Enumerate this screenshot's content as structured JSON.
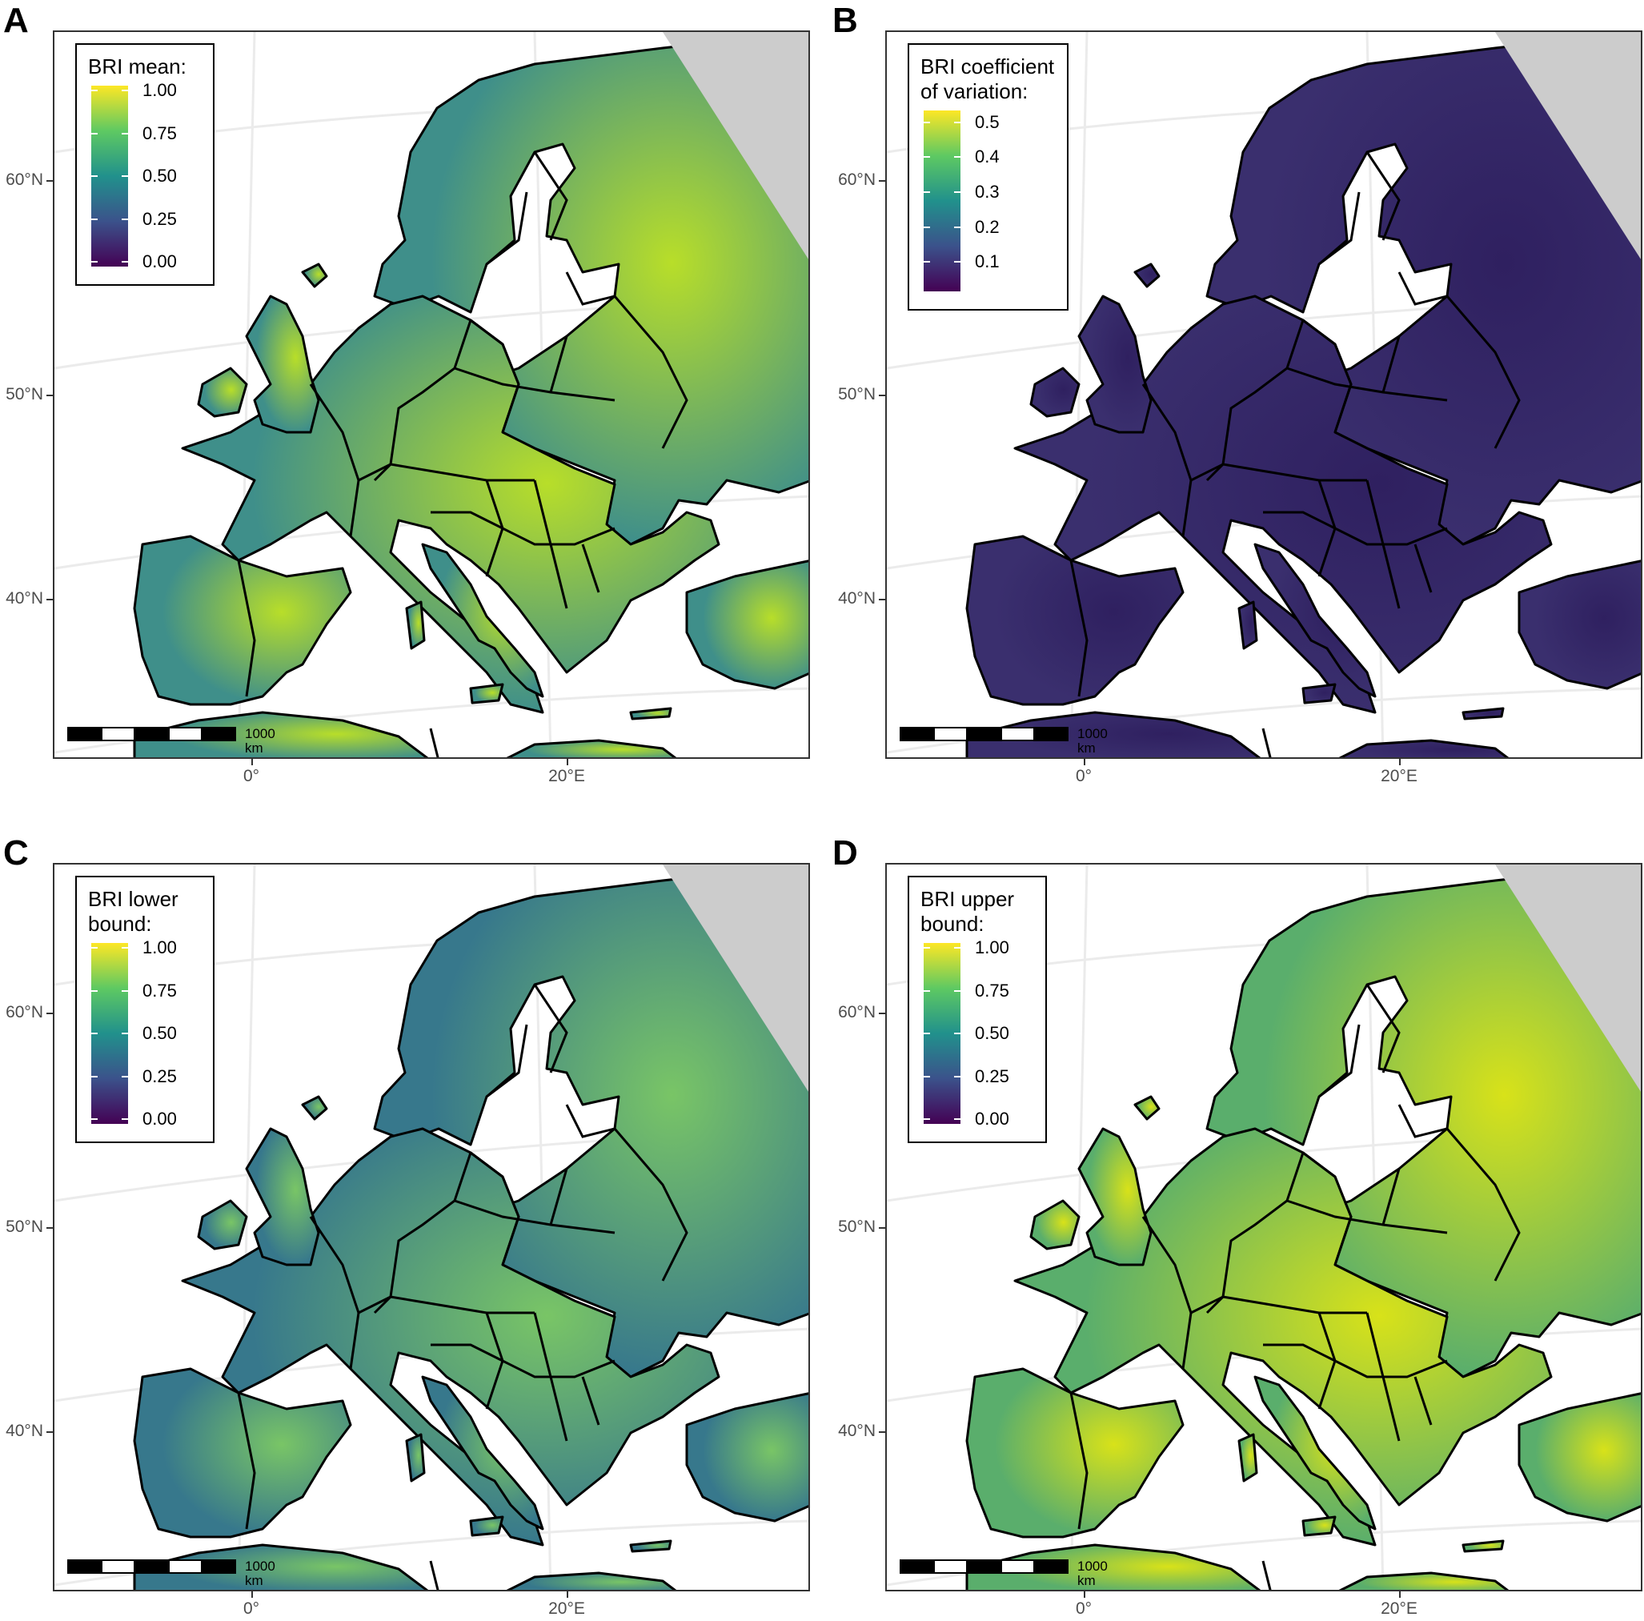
{
  "panels": [
    {
      "id": "A",
      "legend_title": "BRI mean:",
      "scale": "mean",
      "tick_labels": [
        "1.00",
        "0.75",
        "0.50",
        "0.25",
        "0.00"
      ],
      "lat_labels": [
        "60°N",
        "50°N",
        "40°N"
      ],
      "lon_labels": [
        "0°",
        "20°E"
      ],
      "scalebar_label": "1000 km"
    },
    {
      "id": "B",
      "legend_title": "BRI coefficient\nof variation:",
      "scale": "cv",
      "tick_labels": [
        "0.5",
        "0.4",
        "0.3",
        "0.2",
        "0.1"
      ],
      "lat_labels": [
        "60°N",
        "50°N",
        "40°N"
      ],
      "lon_labels": [
        "0°",
        "20°E"
      ],
      "scalebar_label": "1000 km"
    },
    {
      "id": "C",
      "legend_title": "BRI lower\nbound:",
      "scale": "lower",
      "tick_labels": [
        "1.00",
        "0.75",
        "0.50",
        "0.25",
        "0.00"
      ],
      "lat_labels": [
        "60°N",
        "50°N",
        "40°N"
      ],
      "lon_labels": [
        "0°",
        "20°E"
      ],
      "scalebar_label": "1000 km"
    },
    {
      "id": "D",
      "legend_title": "BRI upper\nbound:",
      "scale": "upper",
      "tick_labels": [
        "1.00",
        "0.75",
        "0.50",
        "0.25",
        "0.00"
      ],
      "lat_labels": [
        "60°N",
        "50°N",
        "40°N"
      ],
      "lon_labels": [
        "0°",
        "20°E"
      ],
      "scalebar_label": "1000 km"
    }
  ],
  "colors": {
    "viridis": [
      "#440154",
      "#3b528b",
      "#21918c",
      "#5ec962",
      "#fde725"
    ],
    "land_mean": "#3f8f8a",
    "land_cv": "#3a2f6e",
    "land_lower": "#37788c",
    "land_upper": "#5aae6c",
    "hot_mean": "#b8de29",
    "hot_cv": "#2f2060",
    "hot_lower": "#79c566",
    "hot_upper": "#d8e219",
    "nodata": "#cccccc",
    "sea": "#ffffff",
    "border": "#000000",
    "graticule": "#ebebeb"
  }
}
